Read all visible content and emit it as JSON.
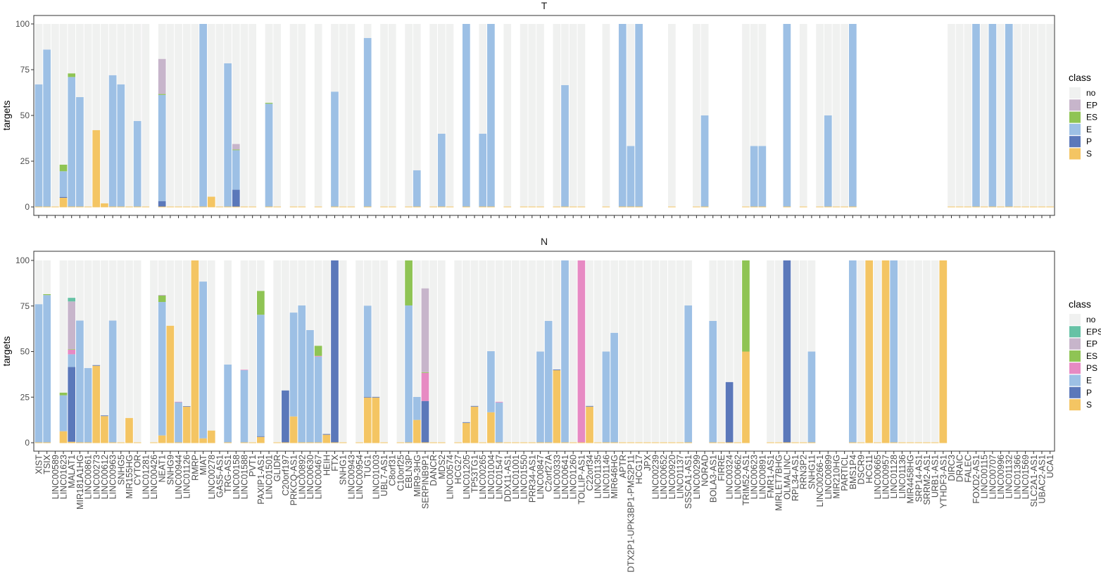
{
  "chart_data": {
    "type": "bar",
    "stacked": true,
    "ylabel": "targets",
    "ylim": [
      0,
      100
    ],
    "yticks": [
      "0",
      "25",
      "50",
      "75",
      "100"
    ],
    "grid": false,
    "legend_title": "class",
    "legend_placement": "right",
    "colors": {
      "no": "#F0F1F0",
      "EPS": "#66C2A5",
      "EP": "#C7B5CB",
      "ES": "#8FC454",
      "PS": "#E78AC3",
      "E": "#9DC0E5",
      "P": "#5B78BA",
      "S": "#F4C563"
    },
    "stack_order": [
      "S",
      "P",
      "E",
      "PS",
      "ES",
      "EP",
      "EPS"
    ],
    "categories": [
      "XIST",
      "TSIX",
      "LINC00589",
      "LINC01623",
      "MALAT1",
      "MIR181A1HG",
      "LINC00861",
      "LINC00273",
      "LINC00612",
      "LINC00963",
      "SNHG5",
      "MIR155HG",
      "CYTOR",
      "LINC01281",
      "LINC00426",
      "NEAT1",
      "SNHG9",
      "LINC00944",
      "LINC01126",
      "RMRP",
      "MIAT",
      "LINC00278",
      "GAS5-AS1",
      "TRG-AS1",
      "LINC00158",
      "LINC01588",
      "PVT1",
      "PAXIP1-AS1",
      "LINC01501",
      "GLIDR",
      "C20orf197",
      "PRKCQ-AS1",
      "LINC00892",
      "LINC00630",
      "LINC00467",
      "HEIH",
      "FTX",
      "SNHG1",
      "LINC00943",
      "LINC00954",
      "TUG1",
      "LINC01003",
      "UBL7-AS1",
      "C8orf31",
      "C10orf25",
      "EBLN3P",
      "MIR9-3HG",
      "SERPINB9P1",
      "DANCR",
      "MDS2",
      "LINC00574",
      "HCG27",
      "LINC01205",
      "TP53TG1",
      "LINC00265",
      "LINC01004",
      "LINC01547",
      "DDX11-AS1",
      "LINC01001",
      "LINC01550",
      "PRR34-AS1",
      "LINC00847",
      "C2orf27A",
      "LINC00333",
      "LINC00641",
      "LINC01260",
      "TOLLIP-AS1",
      "C22orf34",
      "LINC01135",
      "LINC01146",
      "MIR646HG",
      "APTR",
      "DTX2P1-UPK3BP1-PMS2P11",
      "HCG17",
      "JPX",
      "LINC00239",
      "LINC00652",
      "LINC00920",
      "LINC01137",
      "SSSCA1-AS1",
      "LINC00299",
      "NORAD",
      "BOLA3-AS1",
      "FIRRE",
      "LINC00324",
      "LINC00662",
      "TRIM52-AS1",
      "LINC00623",
      "LINC00891",
      "FMR1-AS1",
      "MIRLET7BHG",
      "OLMALINC",
      "RPL34-AS1",
      "RRN3P2",
      "SNHG11",
      "LINC00266-1",
      "LINC00899",
      "MIR210HG",
      "PARTICL",
      "BMS1P4",
      "DSCR9",
      "HCG11",
      "LINC00665",
      "LINC00957",
      "LINC01128",
      "LINC01136",
      "MIR4458HG",
      "SRP14-AS1",
      "SRRM2-AS1",
      "URB1-AS1",
      "YTHDF3-AS1",
      "DIRC3",
      "DRAIC",
      "FALEC",
      "FOXD2-AS1",
      "LINC00115",
      "LINC00707",
      "LINC00996",
      "LINC01132",
      "LINC01366",
      "LINC01569",
      "SLC2A1-AS1",
      "UBAC2-AS1",
      "UCA1"
    ],
    "panels": [
      {
        "title": "T",
        "legend": [
          "no",
          "EP",
          "ES",
          "E",
          "P",
          "S"
        ],
        "bars": [
          {
            "gene": "XIST",
            "E": 67
          },
          {
            "gene": "TSIX",
            "E": 86
          },
          {
            "gene": "LINC00589"
          },
          {
            "gene": "LINC01623",
            "S": 5,
            "P": 0.5,
            "E": 14,
            "ES": 3.6
          },
          {
            "gene": "MALAT1",
            "E": 71,
            "ES": 2
          },
          {
            "gene": "MIR181A1HG",
            "E": 60
          },
          {
            "gene": "LINC00861"
          },
          {
            "gene": "LINC00273",
            "S": 42
          },
          {
            "gene": "LINC00612",
            "S": 2
          },
          {
            "gene": "LINC00963",
            "E": 72
          },
          {
            "gene": "SNHG5",
            "E": 67
          },
          {
            "gene": "MIR155HG"
          },
          {
            "gene": "CYTOR",
            "E": 47
          },
          {
            "gene": "LINC01281"
          },
          {
            "gene": "NEAT1",
            "P": 3.2,
            "E": 58,
            "ES": 0.5,
            "EP": 19.2
          },
          {
            "gene": "SNHG9"
          },
          {
            "gene": "LINC00944"
          },
          {
            "gene": "LINC01126"
          },
          {
            "gene": "RMRP"
          },
          {
            "gene": "MIAT",
            "E": 100
          },
          {
            "gene": "LINC00278",
            "S": 5.6
          },
          {
            "gene": "GAS5-AS1"
          },
          {
            "gene": "TRG-AS1",
            "E": 78.5
          },
          {
            "gene": "LINC00158",
            "P": 9.4,
            "E": 21.6,
            "ES": 0.4,
            "EP": 3
          },
          {
            "gene": "LINC01588"
          },
          {
            "gene": "PVT1"
          },
          {
            "gene": "LINC01501",
            "E": 56.4,
            "ES": 0.5
          },
          {
            "gene": "GLIDR"
          },
          {
            "gene": "PRKCQ-AS1"
          },
          {
            "gene": "LINC00892"
          },
          {
            "gene": "LINC00467"
          },
          {
            "gene": "FTX",
            "E": 63
          },
          {
            "gene": "SNHG1"
          },
          {
            "gene": "LINC00943"
          },
          {
            "gene": "TUG1",
            "E": 92.3
          },
          {
            "gene": "UBL7-AS1"
          },
          {
            "gene": "C8orf31"
          },
          {
            "gene": "EBLN3P"
          },
          {
            "gene": "MIR9-3HG",
            "E": 20
          },
          {
            "gene": "DANCR"
          },
          {
            "gene": "MDS2",
            "E": 40
          },
          {
            "gene": "LINC00574"
          },
          {
            "gene": "LINC01205",
            "E": 100
          },
          {
            "gene": "LINC00265",
            "E": 40
          },
          {
            "gene": "LINC01004",
            "E": 100
          },
          {
            "gene": "DDX11-AS1"
          },
          {
            "gene": "LINC01550"
          },
          {
            "gene": "PRR34-AS1"
          },
          {
            "gene": "LINC00847"
          },
          {
            "gene": "LINC00333"
          },
          {
            "gene": "LINC00641",
            "E": 66.6
          },
          {
            "gene": "LINC01260"
          },
          {
            "gene": "TOLLIP-AS1"
          },
          {
            "gene": "LINC01146"
          },
          {
            "gene": "APTR",
            "E": 100
          },
          {
            "gene": "DTX2P1-UPK3BP1-PMS2P11",
            "E": 33.3
          },
          {
            "gene": "HCG17",
            "E": 100
          },
          {
            "gene": "LINC00920"
          },
          {
            "gene": "LINC00299"
          },
          {
            "gene": "NORAD",
            "E": 50
          },
          {
            "gene": "TRIM52-AS1"
          },
          {
            "gene": "LINC00623",
            "E": 33.3
          },
          {
            "gene": "LINC00891",
            "E": 33.3
          },
          {
            "gene": "OLMALINC",
            "E": 100
          },
          {
            "gene": "RRN3P2"
          },
          {
            "gene": "LINC00266-1"
          },
          {
            "gene": "LINC00899",
            "E": 50
          },
          {
            "gene": "MIR210HG"
          },
          {
            "gene": "PARTICL"
          },
          {
            "gene": "BMS1P4",
            "E": 100
          },
          {
            "gene": "DIRC3"
          },
          {
            "gene": "DRAIC"
          },
          {
            "gene": "FALEC"
          },
          {
            "gene": "FOXD2-AS1",
            "E": 100
          },
          {
            "gene": "LINC00115"
          },
          {
            "gene": "LINC00707",
            "E": 100
          },
          {
            "gene": "LINC00996"
          },
          {
            "gene": "LINC01132",
            "E": 100
          },
          {
            "gene": "LINC01366"
          },
          {
            "gene": "LINC01569"
          },
          {
            "gene": "SLC2A1-AS1"
          },
          {
            "gene": "UBAC2-AS1"
          },
          {
            "gene": "UCA1"
          }
        ]
      },
      {
        "title": "N",
        "legend": [
          "no",
          "EPS",
          "EP",
          "ES",
          "PS",
          "E",
          "P",
          "S"
        ],
        "bars": [
          {
            "gene": "XIST",
            "E": 76
          },
          {
            "gene": "TSIX",
            "E": 81,
            "ES": 0.5
          },
          {
            "gene": "LINC01623",
            "S": 6.3,
            "E": 19.7,
            "ES": 1.5
          },
          {
            "gene": "MALAT1",
            "S": 0.5,
            "P": 41,
            "E": 7,
            "PS": 2.5,
            "ES": 0.3,
            "EP": 26.2,
            "EPS": 2
          },
          {
            "gene": "MIR181A1HG",
            "E": 67
          },
          {
            "gene": "LINC00861",
            "E": 41
          },
          {
            "gene": "LINC00273",
            "S": 42.2,
            "P": 0.4
          },
          {
            "gene": "LINC00612",
            "S": 14.6,
            "P": 0.4
          },
          {
            "gene": "LINC00963",
            "E": 67
          },
          {
            "gene": "SNHG5"
          },
          {
            "gene": "MIR155HG",
            "S": 13.6
          },
          {
            "gene": "CYTOR"
          },
          {
            "gene": "LINC00426"
          },
          {
            "gene": "NEAT1",
            "S": 4,
            "E": 73.2,
            "ES": 3.5,
            "EP": 0.4
          },
          {
            "gene": "SNHG9",
            "S": 64.2
          },
          {
            "gene": "LINC00944",
            "E": 22.2,
            "PS": 0.3
          },
          {
            "gene": "LINC01126",
            "S": 19.8,
            "P": 0.3
          },
          {
            "gene": "RMRP",
            "S": 100
          },
          {
            "gene": "MIAT",
            "S": 2.4,
            "E": 86
          },
          {
            "gene": "LINC00278",
            "S": 6.7
          },
          {
            "gene": "TRG-AS1",
            "E": 42.9
          },
          {
            "gene": "LINC01588",
            "E": 39.8,
            "PS": 0.3
          },
          {
            "gene": "PVT1"
          },
          {
            "gene": "PAXIP1-AS1",
            "S": 3.2,
            "P": 0.4,
            "E": 66.6,
            "ES": 13.1
          },
          {
            "gene": "GLIDR"
          },
          {
            "gene": "C20orf197",
            "P": 28.7
          },
          {
            "gene": "PRKCQ-AS1",
            "S": 14.4,
            "E": 57
          },
          {
            "gene": "LINC00892",
            "E": 75.3
          },
          {
            "gene": "LINC00630",
            "E": 61.8
          },
          {
            "gene": "LINC00467",
            "E": 47.2,
            "PS": 0.4,
            "ES": 5.6
          },
          {
            "gene": "HEIH",
            "S": 4.4,
            "P": 0.4
          },
          {
            "gene": "FTX",
            "P": 100
          },
          {
            "gene": "SNHG1"
          },
          {
            "gene": "LINC00954"
          },
          {
            "gene": "TUG1",
            "S": 24.8,
            "P": 0.4,
            "E": 50
          },
          {
            "gene": "LINC01003",
            "S": 24.8,
            "P": 0.4
          },
          {
            "gene": "UBL7-AS1"
          },
          {
            "gene": "C10orf25"
          },
          {
            "gene": "EBLN3P",
            "E": 75.3,
            "ES": 24.7
          },
          {
            "gene": "MIR9-3HG",
            "S": 12.5,
            "E": 12.6
          },
          {
            "gene": "SERPINB9P1",
            "P": 22.9,
            "PS": 15.4,
            "ES": 0.4,
            "EP": 46
          },
          {
            "gene": "DANCR"
          },
          {
            "gene": "MDS2"
          },
          {
            "gene": "HCG27"
          },
          {
            "gene": "LINC01205",
            "S": 10.9,
            "P": 0.4
          },
          {
            "gene": "TP53TG1",
            "S": 19.8,
            "P": 0.4
          },
          {
            "gene": "LINC00265"
          },
          {
            "gene": "LINC01004",
            "S": 16.7,
            "E": 33.5
          },
          {
            "gene": "LINC01547",
            "E": 22.1,
            "PS": 0.4
          },
          {
            "gene": "DDX11-AS1"
          },
          {
            "gene": "LINC01001"
          },
          {
            "gene": "LINC01550"
          },
          {
            "gene": "PRR34-AS1"
          },
          {
            "gene": "LINC00847",
            "E": 50
          },
          {
            "gene": "C2orf27A",
            "E": 66.8
          },
          {
            "gene": "LINC00333",
            "S": 39.8,
            "P": 0.4
          },
          {
            "gene": "LINC00641",
            "E": 100
          },
          {
            "gene": "LINC01260"
          },
          {
            "gene": "TOLLIP-AS1",
            "PS": 100
          },
          {
            "gene": "C22orf34",
            "S": 19.8,
            "P": 0.4
          },
          {
            "gene": "LINC01135"
          },
          {
            "gene": "LINC01146",
            "E": 50
          },
          {
            "gene": "MIR646HG",
            "E": 60.3
          },
          {
            "gene": "APTR"
          },
          {
            "gene": "DTX2P1-UPK3BP1-PMS2P11"
          },
          {
            "gene": "HCG17"
          },
          {
            "gene": "JPX"
          },
          {
            "gene": "LINC00239"
          },
          {
            "gene": "LINC00652"
          },
          {
            "gene": "LINC00920"
          },
          {
            "gene": "LINC01137"
          },
          {
            "gene": "SSSCA1-AS1",
            "E": 75.3
          },
          {
            "gene": "BOLA3-AS1",
            "E": 66.8
          },
          {
            "gene": "FIRRE"
          },
          {
            "gene": "LINC00324",
            "P": 33.3
          },
          {
            "gene": "LINC00662"
          },
          {
            "gene": "TRIM52-AS1",
            "S": 50,
            "ES": 50
          },
          {
            "gene": "FMR1-AS1"
          },
          {
            "gene": "MIRLET7BHG"
          },
          {
            "gene": "OLMALINC",
            "P": 100
          },
          {
            "gene": "RPL34-AS1"
          },
          {
            "gene": "RRN3P2"
          },
          {
            "gene": "SNHG11",
            "E": 50
          },
          {
            "gene": "BMS1P4",
            "E": 100
          },
          {
            "gene": "DSCR9"
          },
          {
            "gene": "HCG11",
            "S": 100
          },
          {
            "gene": "LINC00665"
          },
          {
            "gene": "LINC00957",
            "S": 100
          },
          {
            "gene": "LINC01128",
            "E": 100
          },
          {
            "gene": "LINC01136"
          },
          {
            "gene": "MIR4458HG"
          },
          {
            "gene": "SRP14-AS1"
          },
          {
            "gene": "SRRM2-AS1"
          },
          {
            "gene": "URB1-AS1"
          },
          {
            "gene": "YTHDF3-AS1",
            "S": 100
          }
        ]
      }
    ]
  }
}
